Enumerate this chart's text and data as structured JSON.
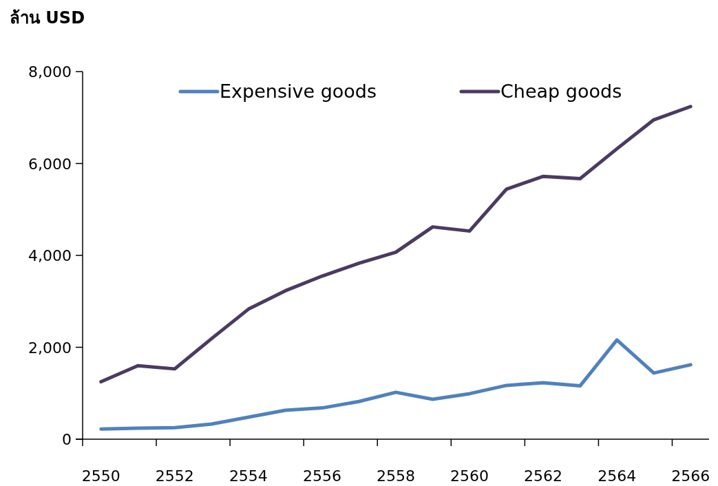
{
  "chart_data": {
    "type": "line",
    "ylabel": "ล้าน USD",
    "categories": [
      "2550",
      null,
      "2552",
      null,
      "2554",
      null,
      "2556",
      null,
      "2558",
      null,
      "2560",
      null,
      "2562",
      null,
      "2564",
      null,
      "2566"
    ],
    "series": [
      {
        "name": "Expensive goods",
        "color": "#4f81bd",
        "values": [
          220,
          240,
          250,
          330,
          480,
          630,
          680,
          820,
          1020,
          870,
          990,
          1170,
          1230,
          1160,
          2160,
          1440,
          1620
        ]
      },
      {
        "name": "Cheap goods",
        "color": "#4b3a62",
        "values": [
          1250,
          1600,
          1530,
          2190,
          2830,
          3230,
          3550,
          3830,
          4070,
          4620,
          4530,
          5440,
          5720,
          5670,
          6320,
          6950,
          7240
        ]
      }
    ],
    "ylim": [
      0,
      8000
    ],
    "yticks": [
      0,
      {
        "value": 2000,
        "label": "2,000"
      },
      {
        "value": 4000,
        "label": "4,000"
      },
      {
        "value": 6000,
        "label": "6,000"
      },
      {
        "value": 8000,
        "label": "8,000"
      }
    ],
    "grid": false,
    "legend": "top",
    "marker": "none",
    "line_style": "solid"
  }
}
